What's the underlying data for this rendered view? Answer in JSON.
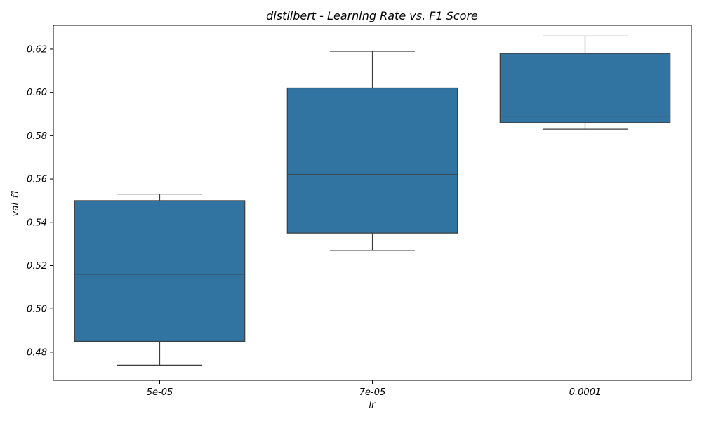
{
  "chart_data": {
    "type": "box",
    "title": "distilbert - Learning Rate vs. F1 Score",
    "xlabel": "lr",
    "ylabel": "val_f1",
    "categories": [
      "5e-05",
      "7e-05",
      "0.0001"
    ],
    "boxes": [
      {
        "category": "5e-05",
        "whisker_low": 0.474,
        "q1": 0.485,
        "median": 0.516,
        "q3": 0.55,
        "whisker_high": 0.553
      },
      {
        "category": "7e-05",
        "whisker_low": 0.527,
        "q1": 0.535,
        "median": 0.562,
        "q3": 0.602,
        "whisker_high": 0.619
      },
      {
        "category": "0.0001",
        "whisker_low": 0.583,
        "q1": 0.586,
        "median": 0.589,
        "q3": 0.618,
        "whisker_high": 0.626
      }
    ],
    "yticks": [
      "0.48",
      "0.50",
      "0.52",
      "0.54",
      "0.56",
      "0.58",
      "0.60",
      "0.62"
    ],
    "ylim": [
      0.467,
      0.631
    ],
    "grid": false,
    "legend": "none",
    "colors": {
      "box_fill": "#3274a1",
      "line": "#3d3d3d",
      "axis": "#000000"
    }
  }
}
